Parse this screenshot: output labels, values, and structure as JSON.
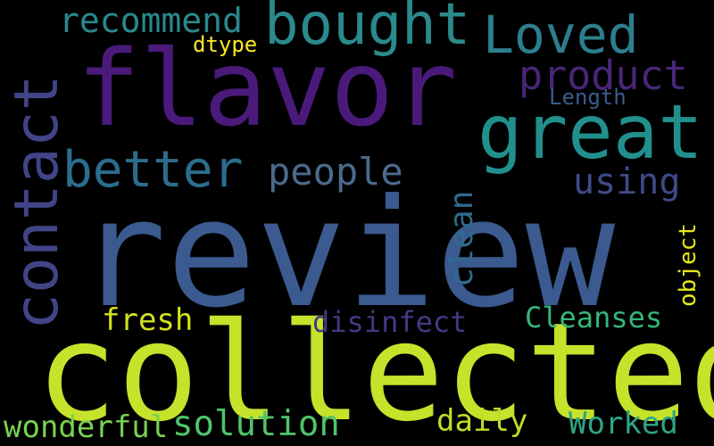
{
  "word_cloud": {
    "background": "#000000",
    "words": [
      {
        "key": "review",
        "text": "review",
        "color": "#3b5a8f"
      },
      {
        "key": "collected",
        "text": "collected",
        "color": "#c6e22b"
      },
      {
        "key": "flavor",
        "text": "flavor",
        "color": "#4a1a7a"
      },
      {
        "key": "contact",
        "text": "contact",
        "color": "#414487"
      },
      {
        "key": "great",
        "text": "great",
        "color": "#21908c"
      },
      {
        "key": "bought",
        "text": "bought",
        "color": "#2a8a8c"
      },
      {
        "key": "loved",
        "text": "Loved",
        "color": "#2c7f8e"
      },
      {
        "key": "recommend",
        "text": "recommend",
        "color": "#29898c"
      },
      {
        "key": "better",
        "text": "better",
        "color": "#2c6d8e"
      },
      {
        "key": "product",
        "text": "product",
        "color": "#482677"
      },
      {
        "key": "people",
        "text": "people",
        "color": "#4b6a8d"
      },
      {
        "key": "using",
        "text": "using",
        "color": "#3f4a8a"
      },
      {
        "key": "length",
        "text": "Length",
        "color": "#3a5b8c"
      },
      {
        "key": "dtype",
        "text": "dtype",
        "color": "#fde725"
      },
      {
        "key": "clean",
        "text": "clean",
        "color": "#2f6b8e"
      },
      {
        "key": "object",
        "text": "object",
        "color": "#e6e71a"
      },
      {
        "key": "fresh",
        "text": "fresh",
        "color": "#d2e21b"
      },
      {
        "key": "disinfect",
        "text": "disinfect",
        "color": "#443983"
      },
      {
        "key": "cleanses",
        "text": "Cleanses",
        "color": "#35b779"
      },
      {
        "key": "wonderful",
        "text": "wonderful",
        "color": "#7ad151"
      },
      {
        "key": "solution",
        "text": "solution",
        "color": "#50c46a"
      },
      {
        "key": "daily",
        "text": "daily",
        "color": "#bddf26"
      },
      {
        "key": "worked",
        "text": "Worked",
        "color": "#2ea585"
      }
    ]
  }
}
